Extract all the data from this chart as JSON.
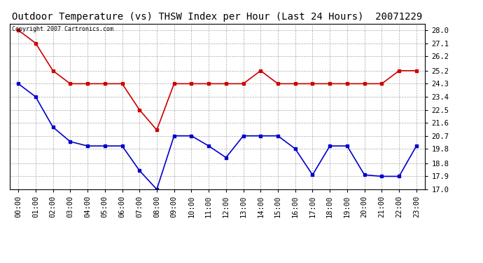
{
  "title": "Outdoor Temperature (vs) THSW Index per Hour (Last 24 Hours)  20071229",
  "copyright_text": "Copyright 2007 Cartronics.com",
  "hours": [
    "00:00",
    "01:00",
    "02:00",
    "03:00",
    "04:00",
    "05:00",
    "06:00",
    "07:00",
    "08:00",
    "09:00",
    "10:00",
    "11:00",
    "12:00",
    "13:00",
    "14:00",
    "15:00",
    "16:00",
    "17:00",
    "18:00",
    "19:00",
    "20:00",
    "21:00",
    "22:00",
    "23:00"
  ],
  "thsw_data": [
    28.0,
    27.1,
    25.2,
    24.3,
    24.3,
    24.3,
    24.3,
    22.5,
    21.1,
    24.3,
    24.3,
    24.3,
    24.3,
    24.3,
    25.2,
    24.3,
    24.3,
    24.3,
    24.3,
    24.3,
    24.3,
    24.3,
    25.2,
    25.2
  ],
  "temp_data": [
    24.3,
    23.4,
    21.3,
    20.3,
    20.0,
    20.0,
    20.0,
    18.3,
    17.0,
    20.7,
    20.7,
    20.0,
    19.2,
    20.7,
    20.7,
    20.7,
    19.8,
    18.0,
    20.0,
    20.0,
    18.0,
    17.9,
    17.9,
    20.0
  ],
  "thsw_color": "#cc0000",
  "temp_color": "#0000cc",
  "bg_color": "#ffffff",
  "plot_bg_color": "#ffffff",
  "grid_color": "#aaaaaa",
  "ylim_min": 17.0,
  "ylim_max": 28.45,
  "yticks": [
    28.0,
    27.1,
    26.2,
    25.2,
    24.3,
    23.4,
    22.5,
    21.6,
    20.7,
    19.8,
    18.8,
    17.9,
    17.0
  ],
  "title_fontsize": 10,
  "tick_fontsize": 7.5,
  "copyright_fontsize": 6,
  "marker": "s",
  "marker_size": 2.5,
  "line_width": 1.2
}
